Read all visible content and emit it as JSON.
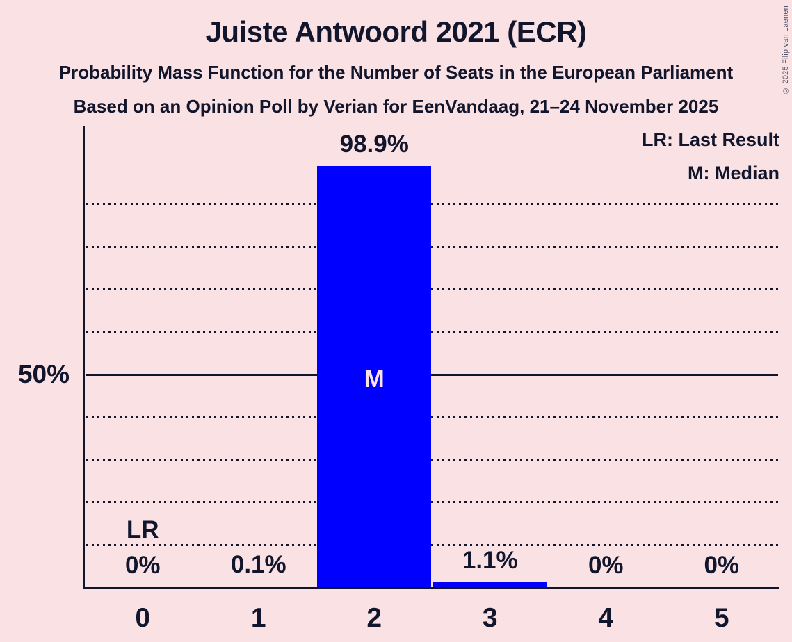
{
  "header": {
    "title": "Juiste Antwoord 2021 (ECR)",
    "subtitle_line1": "Probability Mass Function for the Number of Seats in the European Parliament",
    "subtitle_line2": "Based on an Opinion Poll by Verian for EenVandaag, 21–24 November 2025",
    "copyright": "© 2025 Filip van Laenen"
  },
  "legend": {
    "last_result": "LR: Last Result",
    "median": "M: Median"
  },
  "colors": {
    "background": "#fae1e4",
    "bar": "#0000ff",
    "text": "#12162d",
    "median_letter": "#fae1e4",
    "copyright_text": "#4d5264"
  },
  "chart_data": {
    "type": "bar",
    "title": "Juiste Antwoord 2021 (ECR)",
    "categories": [
      "0",
      "1",
      "2",
      "3",
      "4",
      "5"
    ],
    "values": [
      0,
      0.1,
      98.9,
      1.1,
      0,
      0
    ],
    "value_labels": [
      "0%",
      "0.1%",
      "98.9%",
      "1.1%",
      "0%",
      "0%"
    ],
    "y_tick_label": "50%",
    "ylim": [
      0,
      108
    ],
    "grid": "dotted horizontal lines every 10%, solid line at 50%",
    "gridlines_pct": [
      10,
      20,
      30,
      40,
      50,
      60,
      70,
      80,
      90
    ],
    "solid_gridline_pct": 50,
    "median_category": "2",
    "median_marker": "M",
    "last_result_category": "0",
    "last_result_marker": "LR",
    "legend_position": "top-right"
  }
}
